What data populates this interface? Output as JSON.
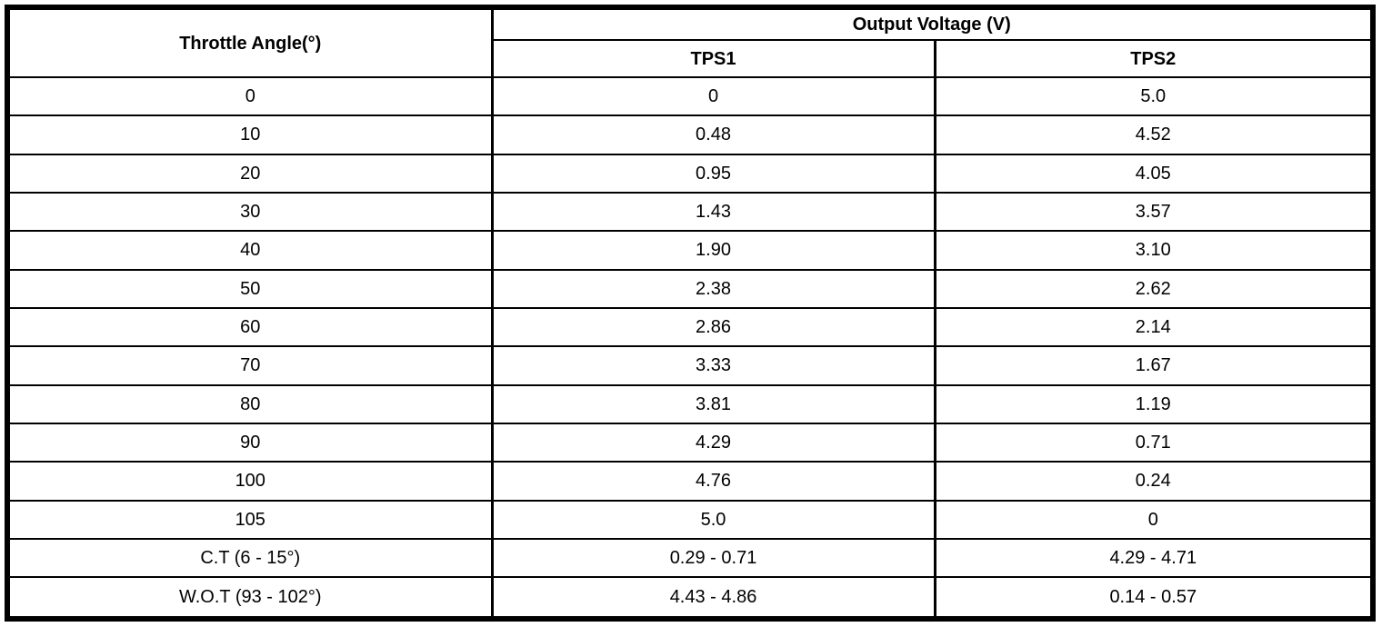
{
  "page": {
    "background": "#ffffff"
  },
  "table": {
    "title_semantic": "throttle-position-sensor-output-voltage-table",
    "angle_header": "Throttle Angle(°)",
    "group_header": "Output Voltage (V)",
    "sub_headers": [
      "TPS1",
      "TPS2"
    ],
    "rows": [
      [
        "0",
        "0",
        "5.0"
      ],
      [
        "10",
        "0.48",
        "4.52"
      ],
      [
        "20",
        "0.95",
        "4.05"
      ],
      [
        "30",
        "1.43",
        "3.57"
      ],
      [
        "40",
        "1.90",
        "3.10"
      ],
      [
        "50",
        "2.38",
        "2.62"
      ],
      [
        "60",
        "2.86",
        "2.14"
      ],
      [
        "70",
        "3.33",
        "1.67"
      ],
      [
        "80",
        "3.81",
        "1.19"
      ],
      [
        "90",
        "4.29",
        "0.71"
      ],
      [
        "100",
        "4.76",
        "0.24"
      ],
      [
        "105",
        "5.0",
        "0"
      ],
      [
        "C.T (6 - 15°)",
        "0.29 - 0.71",
        "4.29 - 4.71"
      ],
      [
        "W.O.T (93 - 102°)",
        "4.43 - 4.86",
        "0.14 - 0.57"
      ]
    ],
    "colors": {
      "border": "#000000",
      "text": "#000000",
      "background": "#ffffff"
    }
  }
}
